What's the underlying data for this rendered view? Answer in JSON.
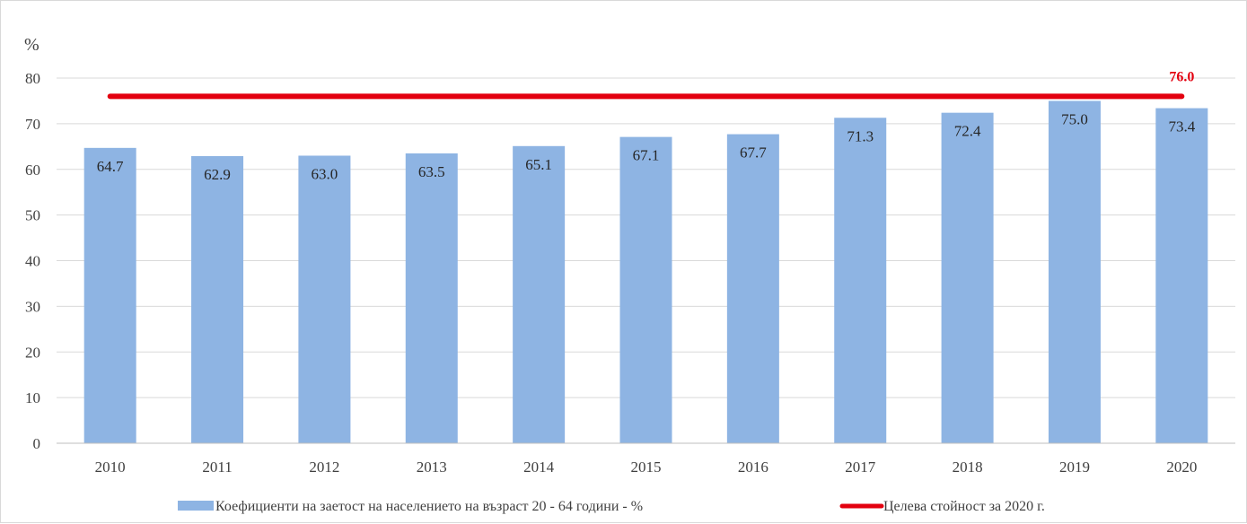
{
  "chart_data": {
    "type": "bar",
    "unit_label": "%",
    "categories": [
      "2010",
      "2011",
      "2012",
      "2013",
      "2014",
      "2015",
      "2016",
      "2017",
      "2018",
      "2019",
      "2020"
    ],
    "series": [
      {
        "name": "Коефициенти  на заетост на населението на възраст 20 - 64 години - %",
        "values": [
          64.7,
          62.9,
          63.0,
          63.5,
          65.1,
          67.1,
          67.7,
          71.3,
          72.4,
          75.0,
          73.4
        ],
        "labels": [
          "64.7",
          "62.9",
          "63.0",
          "63.5",
          "65.1",
          "67.1",
          "67.7",
          "71.3",
          "72.4",
          "75.0",
          "73.4"
        ],
        "color": "#8eb4e3"
      }
    ],
    "target": {
      "name": "Целева стойност за 2020 г.",
      "value": 76.0,
      "label": "76.0",
      "color": "#e3000f"
    },
    "yticks": [
      "0",
      "10",
      "20",
      "30",
      "40",
      "50",
      "60",
      "70",
      "80"
    ],
    "ylim": [
      0,
      80
    ],
    "grid": true,
    "legend_position": "bottom"
  }
}
